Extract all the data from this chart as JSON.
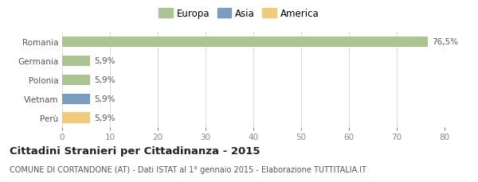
{
  "categories": [
    "Romania",
    "Germania",
    "Polonia",
    "Vietnam",
    "Perù"
  ],
  "values": [
    76.5,
    5.9,
    5.9,
    5.9,
    5.9
  ],
  "bar_colors": [
    "#acc491",
    "#acc491",
    "#acc491",
    "#7b9bbf",
    "#f0cb7a"
  ],
  "legend_items": [
    {
      "label": "Europa",
      "color": "#acc491"
    },
    {
      "label": "Asia",
      "color": "#7b9bbf"
    },
    {
      "label": "America",
      "color": "#f0cb7a"
    }
  ],
  "value_labels": [
    "76,5%",
    "5,9%",
    "5,9%",
    "5,9%",
    "5,9%"
  ],
  "xlim": [
    0,
    80
  ],
  "xticks": [
    0,
    10,
    20,
    30,
    40,
    50,
    60,
    70,
    80
  ],
  "title": "Cittadini Stranieri per Cittadinanza - 2015",
  "subtitle": "COMUNE DI CORTANDONE (AT) - Dati ISTAT al 1° gennaio 2015 - Elaborazione TUTTITALIA.IT",
  "background_color": "#ffffff",
  "grid_color": "#dddddd",
  "bar_height": 0.55,
  "label_fontsize": 7.5,
  "tick_fontsize": 7.5,
  "title_fontsize": 9.5,
  "subtitle_fontsize": 7.0,
  "legend_fontsize": 8.5
}
